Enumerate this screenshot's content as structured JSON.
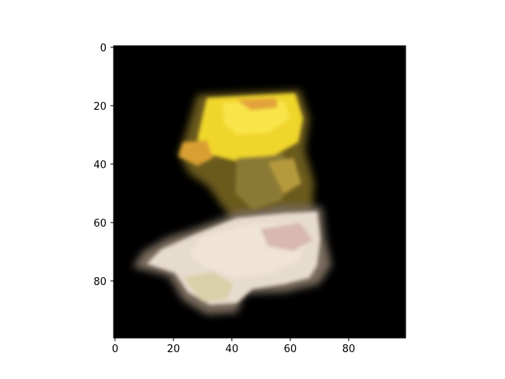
{
  "chart_data": {
    "type": "heatmap",
    "description_kind": "image-display (imshow)",
    "title": "",
    "xlabel": "",
    "ylabel": "",
    "xlim": [
      -0.5,
      99.5
    ],
    "ylim": [
      99.5,
      -0.5
    ],
    "x_ticks": [
      0,
      20,
      40,
      60,
      80
    ],
    "y_ticks": [
      0,
      20,
      40,
      60,
      80
    ],
    "x_tick_labels": [
      "0",
      "20",
      "40",
      "60",
      "80"
    ],
    "y_tick_labels": [
      "0",
      "20",
      "40",
      "60",
      "80"
    ],
    "image_shape": [
      100,
      100
    ],
    "y_axis_inverted": true,
    "grid": false,
    "colors": {
      "background": "#000000",
      "axis": "#000000",
      "page": "#ffffff",
      "yellow": "#f2dc2a",
      "pale": "#e8ddd0"
    }
  }
}
